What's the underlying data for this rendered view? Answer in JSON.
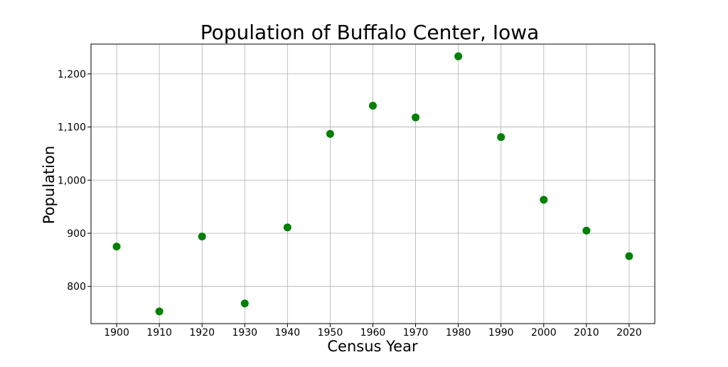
{
  "chart_data": {
    "type": "scatter",
    "title": "Population of Buffalo Center, Iowa",
    "xlabel": "Census Year",
    "ylabel": "Population",
    "x": [
      1900,
      1910,
      1920,
      1930,
      1940,
      1950,
      1960,
      1970,
      1980,
      1990,
      2000,
      2010,
      2020
    ],
    "y": [
      875,
      753,
      894,
      768,
      911,
      1087,
      1140,
      1118,
      1233,
      1081,
      963,
      905,
      857
    ],
    "xlim": [
      1894,
      2026
    ],
    "ylim": [
      730,
      1256
    ],
    "x_ticks": [
      1900,
      1910,
      1920,
      1930,
      1940,
      1950,
      1960,
      1970,
      1980,
      1990,
      2000,
      2010,
      2020
    ],
    "y_ticks": [
      800,
      900,
      1000,
      1100,
      1200
    ],
    "y_tick_labels": [
      "800",
      "900",
      "1,000",
      "1,100",
      "1,200"
    ],
    "grid": true,
    "marker_color": "#008000"
  }
}
